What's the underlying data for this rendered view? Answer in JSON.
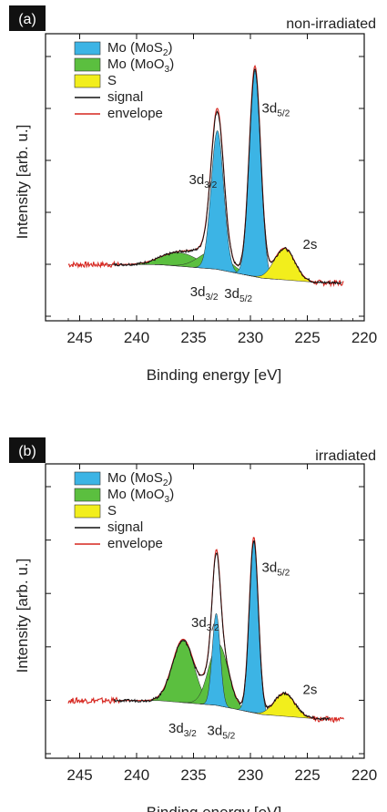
{
  "chart_data": [
    {
      "type": "line",
      "panel": "(a)",
      "corner_label": "non-irradiated",
      "xlabel": "Binding energy [eV]",
      "ylabel": "Intensity [arb. u.]",
      "xlim": [
        248,
        220
      ],
      "x_reversed": true,
      "xticks": [
        245,
        240,
        235,
        230,
        225,
        220
      ],
      "y_ticks_unlabeled": true,
      "legend_position": "top-left",
      "legend": [
        {
          "label": "Mo (MoS",
          "sub": "2",
          "tail": ")",
          "kind": "fill",
          "color": "#3cb4e5"
        },
        {
          "label": "Mo (MoO",
          "sub": "3",
          "tail": ")",
          "kind": "fill",
          "color": "#5bbf3f"
        },
        {
          "label": "S",
          "sub": "",
          "tail": "",
          "kind": "fill",
          "color": "#f2ee1c"
        },
        {
          "label": "signal",
          "sub": "",
          "tail": "",
          "kind": "line",
          "color": "#111111"
        },
        {
          "label": "envelope",
          "sub": "",
          "tail": "",
          "kind": "line",
          "color": "#d6261f"
        }
      ],
      "baseline": {
        "x": [
          242,
          238,
          233,
          229,
          224
        ],
        "y": [
          0.02,
          0.02,
          0.0,
          -0.04,
          -0.06
        ]
      },
      "components": [
        {
          "name": "Mo (MoS2) 3d3/2",
          "color": "#3cb4e5",
          "center": 232.9,
          "height": 0.62,
          "width": 0.55
        },
        {
          "name": "Mo (MoS2) 3d5/2",
          "color": "#3cb4e5",
          "center": 229.6,
          "height": 0.92,
          "width": 0.5
        },
        {
          "name": "Mo (MoO3) 3d3/2",
          "color": "#5bbf3f",
          "center": 236.2,
          "height": 0.06,
          "width": 1.6
        },
        {
          "name": "Mo (MoO3) 3d5/2",
          "color": "#5bbf3f",
          "center": 233.2,
          "height": 0.08,
          "width": 1.3
        },
        {
          "name": "S 2s",
          "color": "#f2ee1c",
          "center": 227.0,
          "height": 0.14,
          "width": 0.9
        }
      ],
      "signal_xrange": [
        242,
        222
      ],
      "envelope_xrange": [
        246,
        221.8
      ],
      "annotations": [
        {
          "text": "3d",
          "sub": "5/2",
          "x": 229.0,
          "y": 0.7
        },
        {
          "text": "3d",
          "sub": "3/2",
          "x": 235.4,
          "y": 0.38
        },
        {
          "text": "2s",
          "x": 225.4,
          "y": 0.09
        },
        {
          "text": "3d",
          "sub": "3/2",
          "x": 235.3,
          "y": -0.12
        },
        {
          "text": "3d",
          "sub": "5/2",
          "x": 232.3,
          "y": -0.13
        }
      ]
    },
    {
      "type": "line",
      "panel": "(b)",
      "corner_label": "irradiated",
      "xlabel": "Binding energy [eV]",
      "ylabel": "Intensity [arb. u.]",
      "xlim": [
        248,
        220
      ],
      "x_reversed": true,
      "xticks": [
        245,
        240,
        235,
        230,
        225,
        220
      ],
      "y_ticks_unlabeled": true,
      "legend_position": "top-left",
      "legend": [
        {
          "label": "Mo (MoS",
          "sub": "2",
          "tail": ")",
          "kind": "fill",
          "color": "#3cb4e5"
        },
        {
          "label": "Mo (MoO",
          "sub": "3",
          "tail": ")",
          "kind": "fill",
          "color": "#5bbf3f"
        },
        {
          "label": "S",
          "sub": "",
          "tail": "",
          "kind": "fill",
          "color": "#f2ee1c"
        },
        {
          "label": "signal",
          "sub": "",
          "tail": "",
          "kind": "line",
          "color": "#111111"
        },
        {
          "label": "envelope",
          "sub": "",
          "tail": "",
          "kind": "line",
          "color": "#d6261f"
        }
      ],
      "baseline": {
        "x": [
          242,
          238,
          233,
          229,
          224
        ],
        "y": [
          0.02,
          0.02,
          0.0,
          -0.04,
          -0.06
        ]
      },
      "components": [
        {
          "name": "Mo (MoS2) 3d3/2",
          "color": "#3cb4e5",
          "center": 233.0,
          "height": 0.4,
          "width": 0.35
        },
        {
          "name": "Mo (MoS2) 3d5/2",
          "color": "#3cb4e5",
          "center": 229.7,
          "height": 0.75,
          "width": 0.4
        },
        {
          "name": "Mo (MoO3) 3d3/2",
          "color": "#5bbf3f",
          "center": 235.9,
          "height": 0.27,
          "width": 0.95
        },
        {
          "name": "Mo (MoO3) 3d5/2",
          "color": "#5bbf3f",
          "center": 232.8,
          "height": 0.27,
          "width": 0.85
        },
        {
          "name": "S 2s",
          "color": "#f2ee1c",
          "center": 227.0,
          "height": 0.1,
          "width": 0.9
        }
      ],
      "signal_xrange": [
        242,
        223
      ],
      "envelope_xrange": [
        246,
        221.8
      ],
      "annotations": [
        {
          "text": "3d",
          "sub": "5/2",
          "x": 229.0,
          "y": 0.58
        },
        {
          "text": "3d",
          "sub": "3/2",
          "x": 235.2,
          "y": 0.34
        },
        {
          "text": "2s",
          "x": 225.4,
          "y": 0.05
        },
        {
          "text": "3d",
          "sub": "3/2",
          "x": 237.2,
          "y": -0.12
        },
        {
          "text": "3d",
          "sub": "5/2",
          "x": 233.8,
          "y": -0.13
        }
      ]
    }
  ]
}
